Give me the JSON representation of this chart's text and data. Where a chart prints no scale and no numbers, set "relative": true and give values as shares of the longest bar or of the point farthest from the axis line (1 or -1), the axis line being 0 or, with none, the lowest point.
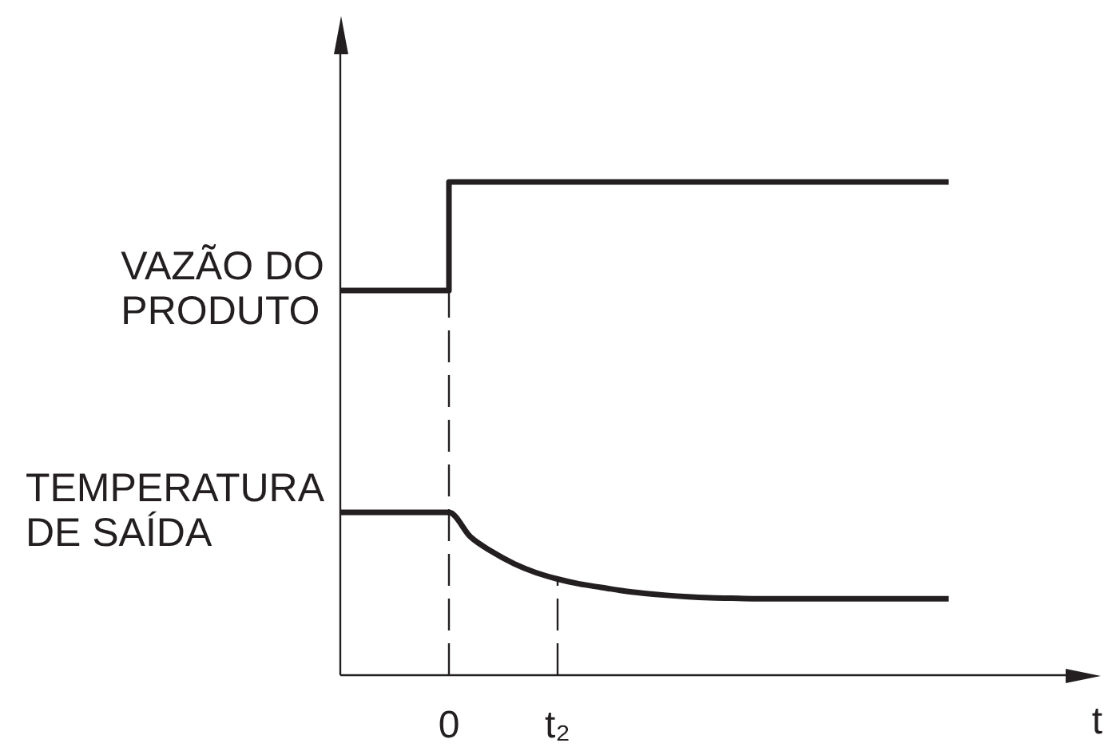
{
  "chart_data": {
    "type": "line",
    "xlabel": "t",
    "relative": true,
    "categories": [
      null,
      null,
      null,
      null,
      null,
      "0",
      null,
      null,
      null,
      null,
      "t₂",
      null,
      null,
      null,
      null,
      null,
      null,
      null,
      null,
      null,
      null,
      null,
      null,
      null,
      null,
      null,
      null,
      null,
      null,
      null,
      null,
      null,
      null,
      null,
      null,
      null
    ],
    "series": [
      {
        "name": "VAZÃO DO PRODUTO",
        "type": "step",
        "color": "#231f20",
        "values": [
          0.78,
          0.78,
          0.78,
          0.78,
          0.78,
          1,
          1,
          1,
          1,
          1,
          1,
          1,
          1,
          1,
          1,
          1,
          1,
          1,
          1,
          1,
          1,
          1,
          1,
          1,
          1,
          1,
          1,
          1,
          1,
          null,
          null,
          null,
          null,
          null,
          null,
          null
        ]
      },
      {
        "name": "TEMPERATURA DE SAÍDA",
        "color": "#231f20",
        "values": [
          0.33,
          0.33,
          0.33,
          0.33,
          0.33,
          0.33,
          0.28,
          0.25,
          0.226,
          0.208,
          0.195,
          0.185,
          0.178,
          0.171,
          0.166,
          0.162,
          0.159,
          0.157,
          0.156,
          0.155,
          0.155,
          0.155,
          0.155,
          0.155,
          0.155,
          0.155,
          0.155,
          0.155,
          0.155,
          null,
          null,
          null,
          null,
          null,
          null,
          null
        ]
      }
    ],
    "ref_lines": [
      {
        "axis": "x",
        "value": "0",
        "line_style": "dashed",
        "color": "#231f20"
      },
      {
        "axis": "x",
        "value": "t₂",
        "line_style": "dashed",
        "color": "#231f20"
      }
    ],
    "legend": false,
    "marker": "none",
    "line_style": "solid"
  }
}
